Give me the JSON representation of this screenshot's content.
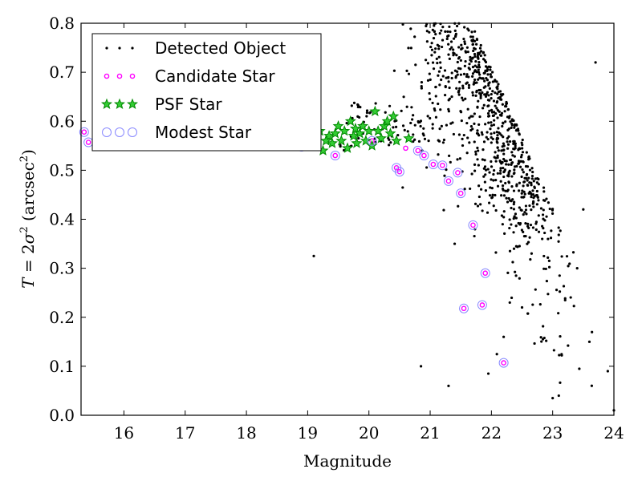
{
  "chart_data": {
    "type": "scatter",
    "xlabel": "Magnitude",
    "ylabel_parts": [
      "T",
      " = 2",
      "σ",
      "2",
      " (arcsec",
      "2",
      ")"
    ],
    "xlim": [
      15.3,
      24.0
    ],
    "ylim": [
      0.0,
      0.8
    ],
    "xticks": [
      16,
      17,
      18,
      19,
      20,
      21,
      22,
      23,
      24
    ],
    "yticks": [
      0.0,
      0.1,
      0.2,
      0.3,
      0.4,
      0.5,
      0.6,
      0.7,
      0.8
    ],
    "grid": false,
    "legend_position": "upper-left",
    "series": [
      {
        "name": "Detected Object",
        "marker": "dot",
        "color": "#000000",
        "generated": {
          "count": 900,
          "seed": 7
        },
        "points": [
          [
            19.1,
            0.325
          ],
          [
            20.85,
            0.1
          ],
          [
            21.3,
            0.06
          ],
          [
            21.4,
            0.35
          ],
          [
            21.95,
            0.085
          ],
          [
            22.2,
            0.16
          ],
          [
            22.3,
            0.23
          ],
          [
            22.5,
            0.22
          ],
          [
            23.0,
            0.035
          ],
          [
            23.1,
            0.04
          ],
          [
            23.9,
            0.09
          ],
          [
            24.0,
            0.01
          ],
          [
            23.6,
            0.15
          ],
          [
            23.4,
            0.3
          ],
          [
            23.5,
            0.42
          ],
          [
            23.7,
            0.72
          ]
        ]
      },
      {
        "name": "Candidate Star",
        "marker": "circle",
        "color": "#ff00ff",
        "points": [
          [
            15.35,
            0.578
          ],
          [
            15.42,
            0.557
          ],
          [
            15.7,
            0.562
          ],
          [
            16.0,
            0.57
          ],
          [
            18.9,
            0.548
          ],
          [
            19.1,
            0.562
          ],
          [
            19.45,
            0.53
          ],
          [
            20.05,
            0.56
          ],
          [
            20.45,
            0.505
          ],
          [
            20.5,
            0.497
          ],
          [
            20.6,
            0.545
          ],
          [
            20.8,
            0.54
          ],
          [
            20.9,
            0.53
          ],
          [
            21.05,
            0.512
          ],
          [
            21.2,
            0.51
          ],
          [
            21.3,
            0.478
          ],
          [
            21.45,
            0.495
          ],
          [
            21.5,
            0.453
          ],
          [
            21.7,
            0.388
          ],
          [
            21.9,
            0.29
          ],
          [
            21.55,
            0.218
          ],
          [
            21.85,
            0.225
          ],
          [
            22.2,
            0.107
          ]
        ]
      },
      {
        "name": "PSF Star",
        "marker": "star",
        "color": "#008800",
        "points": [
          [
            19.2,
            0.58
          ],
          [
            19.25,
            0.54
          ],
          [
            19.35,
            0.57
          ],
          [
            19.4,
            0.555
          ],
          [
            19.5,
            0.59
          ],
          [
            19.55,
            0.56
          ],
          [
            19.6,
            0.58
          ],
          [
            19.65,
            0.545
          ],
          [
            19.7,
            0.6
          ],
          [
            19.75,
            0.57
          ],
          [
            19.78,
            0.585
          ],
          [
            19.8,
            0.555
          ],
          [
            19.85,
            0.575
          ],
          [
            19.9,
            0.59
          ],
          [
            19.95,
            0.56
          ],
          [
            20.0,
            0.58
          ],
          [
            20.05,
            0.55
          ],
          [
            20.1,
            0.62
          ],
          [
            20.15,
            0.58
          ],
          [
            20.2,
            0.565
          ],
          [
            20.25,
            0.59
          ],
          [
            20.3,
            0.6
          ],
          [
            20.35,
            0.575
          ],
          [
            20.4,
            0.61
          ],
          [
            20.45,
            0.56
          ],
          [
            20.65,
            0.565
          ],
          [
            19.45,
            0.575
          ],
          [
            19.3,
            0.56
          ]
        ]
      },
      {
        "name": "Modest Star",
        "marker": "ring",
        "color": "#8888ff",
        "points": [
          [
            15.35,
            0.578
          ],
          [
            15.42,
            0.557
          ],
          [
            15.7,
            0.562
          ],
          [
            15.9,
            0.578
          ],
          [
            16.0,
            0.57
          ],
          [
            18.9,
            0.548
          ],
          [
            19.1,
            0.562
          ],
          [
            19.45,
            0.53
          ],
          [
            20.05,
            0.56
          ],
          [
            20.45,
            0.505
          ],
          [
            20.5,
            0.497
          ],
          [
            20.8,
            0.54
          ],
          [
            20.9,
            0.53
          ],
          [
            21.05,
            0.512
          ],
          [
            21.2,
            0.51
          ],
          [
            21.3,
            0.478
          ],
          [
            21.45,
            0.495
          ],
          [
            21.5,
            0.453
          ],
          [
            21.7,
            0.388
          ],
          [
            21.9,
            0.29
          ],
          [
            21.55,
            0.218
          ],
          [
            21.85,
            0.225
          ],
          [
            22.2,
            0.107
          ]
        ]
      }
    ]
  }
}
